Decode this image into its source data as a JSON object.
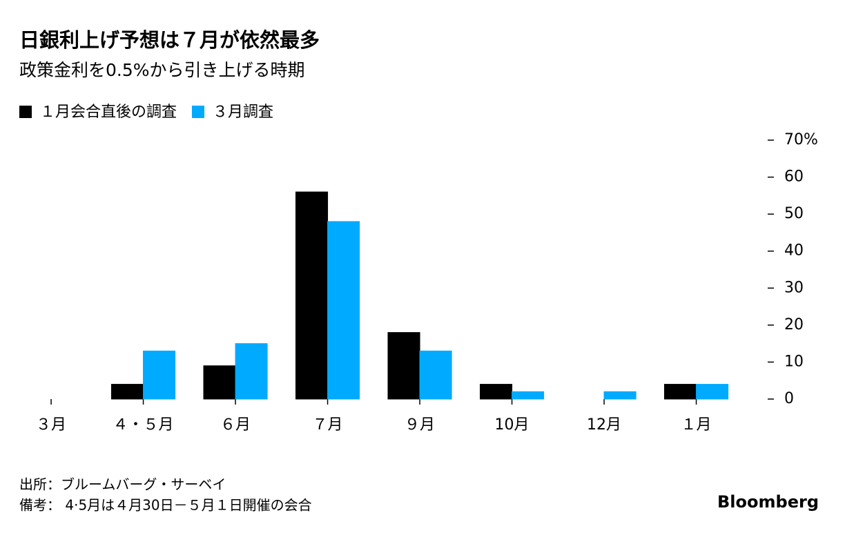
{
  "chart_data": {
    "type": "bar",
    "title": "日銀利上げ予想は７月が依然最多",
    "subtitle": "政策金利を0.5%から引き上げる時期",
    "categories": [
      "３月",
      "４・５月",
      "６月",
      "７月",
      "９月",
      "10月",
      "12月",
      "１月"
    ],
    "series": [
      {
        "name": "１月会合直後の調査",
        "color": "#000000",
        "values": [
          0,
          4,
          9,
          56,
          18,
          4,
          0,
          4
        ]
      },
      {
        "name": "３月調査",
        "color": "#00aaff",
        "values": [
          0,
          13,
          15,
          48,
          13,
          2,
          2,
          4
        ]
      }
    ],
    "ylim": [
      0,
      70
    ],
    "yticks": [
      0,
      10,
      20,
      30,
      40,
      50,
      60,
      {
        "value": 70,
        "label": "70%"
      }
    ],
    "y_axis_side": "right",
    "grid": false,
    "source": "出所：ブルームバーグ・サーベイ",
    "note": "備考： 4·5月は４月30日－５月１日開催の会合",
    "brand": "Bloomberg"
  }
}
